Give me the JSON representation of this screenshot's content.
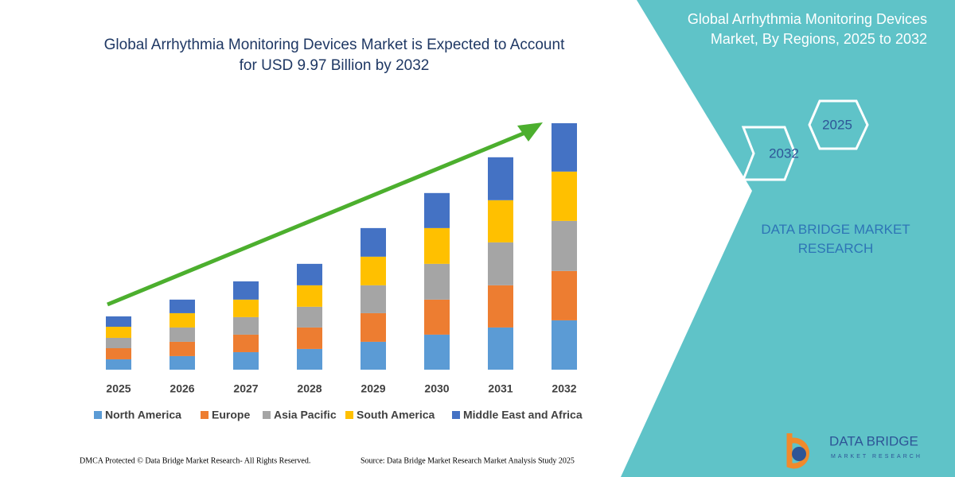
{
  "chart_data": {
    "type": "stacked-bar",
    "title": "Global Arrhythmia Monitoring Devices Market is Expected to Account for USD 9.97 Billion by 2032",
    "categories": [
      "2025",
      "2026",
      "2027",
      "2028",
      "2029",
      "2030",
      "2031",
      "2032"
    ],
    "series": [
      {
        "name": "North America",
        "color": "#5b9bd5",
        "values": [
          0.42,
          0.55,
          0.71,
          0.84,
          1.13,
          1.42,
          1.71,
          2.0
        ]
      },
      {
        "name": "Europe",
        "color": "#ed7d31",
        "values": [
          0.45,
          0.58,
          0.71,
          0.87,
          1.16,
          1.42,
          1.71,
          2.0
        ]
      },
      {
        "name": "Asia Pacific",
        "color": "#a5a5a5",
        "values": [
          0.42,
          0.58,
          0.71,
          0.84,
          1.13,
          1.45,
          1.74,
          2.03
        ]
      },
      {
        "name": "South America",
        "color": "#ffc000",
        "values": [
          0.45,
          0.58,
          0.71,
          0.87,
          1.16,
          1.45,
          1.71,
          2.0
        ]
      },
      {
        "name": "Middle East and Africa",
        "color": "#4472c4",
        "values": [
          0.42,
          0.55,
          0.74,
          0.87,
          1.16,
          1.42,
          1.74,
          1.96
        ]
      }
    ]
  },
  "panel": {
    "title": "Global Arrhythmia Monitoring Devices Market, By Regions, 2025 to 2032",
    "hex_top": "2025",
    "hex_bottom": "2032",
    "brand": "DATA BRIDGE MARKET RESEARCH"
  },
  "logo": {
    "name": "DATA BRIDGE",
    "tagline": "MARKET RESEARCH"
  },
  "footer": {
    "left": "DMCA Protected © Data Bridge Market Research-  All Rights Reserved.",
    "right": "Source: Data Bridge Market Research  Market Analysis Study 2025"
  }
}
